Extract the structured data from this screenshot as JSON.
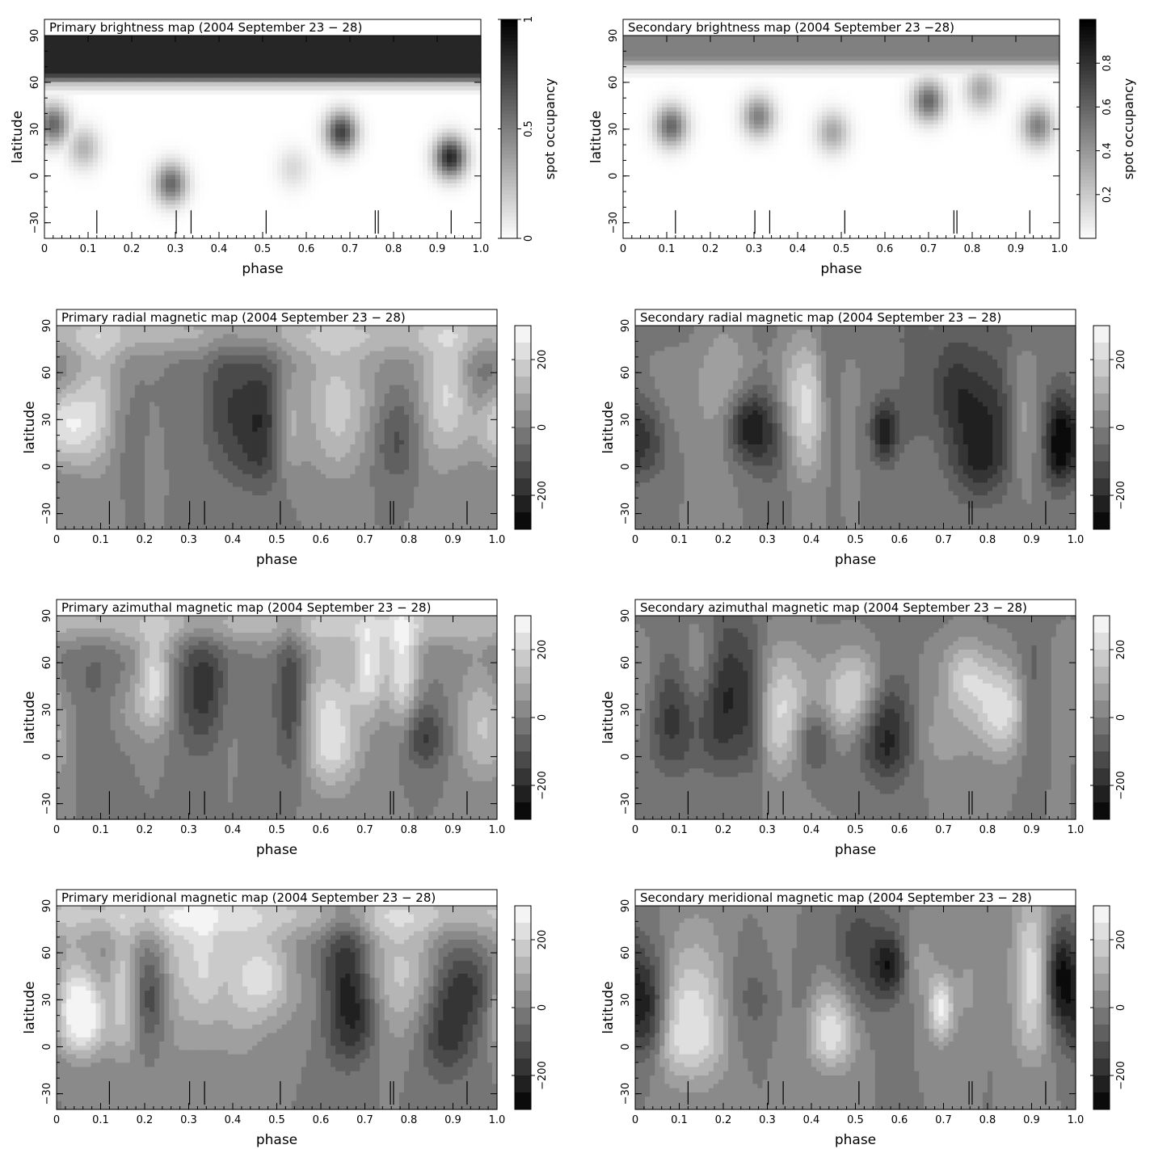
{
  "chart_data": [
    {
      "type": "heatmap",
      "title": "Primary brightness map (2004 September 23 − 28)",
      "xlabel": "phase",
      "ylabel": "latitude",
      "xlim": [
        0,
        1
      ],
      "ylim": [
        -40,
        90
      ],
      "xticks": [
        "0",
        "0.1",
        "0.2",
        "0.3",
        "0.4",
        "0.5",
        "0.6",
        "0.7",
        "0.8",
        "0.9",
        "1.0"
      ],
      "yticks": [
        "−30",
        "0",
        "30",
        "60",
        "90"
      ],
      "colorbar": {
        "label": "spot occupancy",
        "range": [
          0,
          1
        ],
        "ticks": [
          "0",
          "0.5",
          "1"
        ],
        "colormap": "gray-reversed"
      },
      "observation_phases": [
        0.12,
        0.302,
        0.336,
        0.508,
        0.758,
        0.765,
        0.932
      ],
      "features": [
        {
          "kind": "cap",
          "lat_min": 60,
          "lat_max": 90,
          "value": 0.85
        },
        {
          "kind": "spot",
          "phase": 0.02,
          "lat": 33,
          "value": 0.6
        },
        {
          "kind": "spot",
          "phase": 0.09,
          "lat": 18,
          "value": 0.3
        },
        {
          "kind": "spot",
          "phase": 0.29,
          "lat": -5,
          "value": 0.6
        },
        {
          "kind": "spot",
          "phase": 0.57,
          "lat": 5,
          "value": 0.15
        },
        {
          "kind": "spot",
          "phase": 0.68,
          "lat": 28,
          "value": 0.75
        },
        {
          "kind": "spot",
          "phase": 0.93,
          "lat": 12,
          "value": 0.85
        }
      ]
    },
    {
      "type": "heatmap",
      "title": "Secondary brightness map (2004 September 23 −28)",
      "xlabel": "phase",
      "ylabel": "latitude",
      "xlim": [
        0,
        1
      ],
      "ylim": [
        -40,
        90
      ],
      "xticks": [
        "0",
        "0.1",
        "0.2",
        "0.3",
        "0.4",
        "0.5",
        "0.6",
        "0.7",
        "0.8",
        "0.9",
        "1.0"
      ],
      "yticks": [
        "−30",
        "0",
        "30",
        "60",
        "90"
      ],
      "colorbar": {
        "label": "spot occupancy",
        "range": [
          0,
          1
        ],
        "ticks": [
          "0.2",
          "0.4",
          "0.6",
          "0.8"
        ],
        "colormap": "gray-reversed"
      },
      "observation_phases": [
        0.12,
        0.302,
        0.336,
        0.508,
        0.758,
        0.765,
        0.932
      ],
      "features": [
        {
          "kind": "cap",
          "lat_min": 70,
          "lat_max": 90,
          "value": 0.5
        },
        {
          "kind": "spot",
          "phase": 0.11,
          "lat": 32,
          "value": 0.6
        },
        {
          "kind": "spot",
          "phase": 0.31,
          "lat": 38,
          "value": 0.5
        },
        {
          "kind": "spot",
          "phase": 0.48,
          "lat": 28,
          "value": 0.35
        },
        {
          "kind": "spot",
          "phase": 0.7,
          "lat": 48,
          "value": 0.6
        },
        {
          "kind": "spot",
          "phase": 0.82,
          "lat": 55,
          "value": 0.35
        },
        {
          "kind": "spot",
          "phase": 0.95,
          "lat": 32,
          "value": 0.5
        }
      ]
    },
    {
      "type": "heatmap",
      "title": "Primary radial magnetic map (2004 September 23 − 28)",
      "xlabel": "phase",
      "ylabel": "latitude",
      "xlim": [
        0,
        1
      ],
      "ylim": [
        -40,
        90
      ],
      "xticks": [
        "0",
        "0.1",
        "0.2",
        "0.3",
        "0.4",
        "0.5",
        "0.6",
        "0.7",
        "0.8",
        "0.9",
        "1.0"
      ],
      "yticks": [
        "−30",
        "0",
        "30",
        "60",
        "90"
      ],
      "colorbar": {
        "label": "",
        "range": [
          -300,
          300
        ],
        "ticks": [
          "−200",
          "0",
          "200"
        ],
        "colormap": "gray",
        "levels": 12
      },
      "observation_phases": [
        0.12,
        0.302,
        0.336,
        0.508,
        0.758,
        0.765,
        0.932
      ],
      "seed": 1
    },
    {
      "type": "heatmap",
      "title": "Secondary radial magnetic map (2004 September 23 − 28)",
      "xlabel": "phase",
      "ylabel": "latitude",
      "xlim": [
        0,
        1
      ],
      "ylim": [
        -40,
        90
      ],
      "xticks": [
        "0",
        "0.1",
        "0.2",
        "0.3",
        "0.4",
        "0.5",
        "0.6",
        "0.7",
        "0.8",
        "0.9",
        "1.0"
      ],
      "yticks": [
        "−30",
        "0",
        "30",
        "60",
        "90"
      ],
      "colorbar": {
        "label": "",
        "range": [
          -300,
          300
        ],
        "ticks": [
          "−200",
          "0",
          "200"
        ],
        "colormap": "gray",
        "levels": 12
      },
      "observation_phases": [
        0.12,
        0.302,
        0.336,
        0.508,
        0.758,
        0.765,
        0.932
      ],
      "seed": 2
    },
    {
      "type": "heatmap",
      "title": "Primary azimuthal magnetic map (2004 September 23 − 28)",
      "xlabel": "phase",
      "ylabel": "latitude",
      "xlim": [
        0,
        1
      ],
      "ylim": [
        -40,
        90
      ],
      "xticks": [
        "0",
        "0.1",
        "0.2",
        "0.3",
        "0.4",
        "0.5",
        "0.6",
        "0.7",
        "0.8",
        "0.9",
        "1.0"
      ],
      "yticks": [
        "−30",
        "0",
        "30",
        "60",
        "90"
      ],
      "colorbar": {
        "label": "",
        "range": [
          -300,
          300
        ],
        "ticks": [
          "−200",
          "0",
          "200"
        ],
        "colormap": "gray",
        "levels": 12
      },
      "observation_phases": [
        0.12,
        0.302,
        0.336,
        0.508,
        0.758,
        0.765,
        0.932
      ],
      "seed": 3
    },
    {
      "type": "heatmap",
      "title": "Secondary azimuthal magnetic map (2004 September 23 − 28)",
      "xlabel": "phase",
      "ylabel": "latitude",
      "xlim": [
        0,
        1
      ],
      "ylim": [
        -40,
        90
      ],
      "xticks": [
        "0",
        "0.1",
        "0.2",
        "0.3",
        "0.4",
        "0.5",
        "0.6",
        "0.7",
        "0.8",
        "0.9",
        "1.0"
      ],
      "yticks": [
        "−30",
        "0",
        "30",
        "60",
        "90"
      ],
      "colorbar": {
        "label": "",
        "range": [
          -300,
          300
        ],
        "ticks": [
          "−200",
          "0",
          "200"
        ],
        "colormap": "gray",
        "levels": 12
      },
      "observation_phases": [
        0.12,
        0.302,
        0.336,
        0.508,
        0.758,
        0.765,
        0.932
      ],
      "seed": 4
    },
    {
      "type": "heatmap",
      "title": "Primary meridional magnetic map (2004 September 23 − 28)",
      "xlabel": "phase",
      "ylabel": "latitude",
      "xlim": [
        0,
        1
      ],
      "ylim": [
        -40,
        90
      ],
      "xticks": [
        "0",
        "0.1",
        "0.2",
        "0.3",
        "0.4",
        "0.5",
        "0.6",
        "0.7",
        "0.8",
        "0.9",
        "1.0"
      ],
      "yticks": [
        "−30",
        "0",
        "30",
        "60",
        "90"
      ],
      "colorbar": {
        "label": "",
        "range": [
          -300,
          300
        ],
        "ticks": [
          "−200",
          "0",
          "200"
        ],
        "colormap": "gray",
        "levels": 12
      },
      "observation_phases": [
        0.12,
        0.302,
        0.336,
        0.508,
        0.758,
        0.765,
        0.932
      ],
      "seed": 5
    },
    {
      "type": "heatmap",
      "title": "Secondary meridional magnetic map (2004 September 23 − 28)",
      "xlabel": "phase",
      "ylabel": "latitude",
      "xlim": [
        0,
        1
      ],
      "ylim": [
        -40,
        90
      ],
      "xticks": [
        "0",
        "0.1",
        "0.2",
        "0.3",
        "0.4",
        "0.5",
        "0.6",
        "0.7",
        "0.8",
        "0.9",
        "1.0"
      ],
      "yticks": [
        "−30",
        "0",
        "30",
        "60",
        "90"
      ],
      "colorbar": {
        "label": "",
        "range": [
          -300,
          300
        ],
        "ticks": [
          "−200",
          "0",
          "200"
        ],
        "colormap": "gray",
        "levels": 12
      },
      "observation_phases": [
        0.12,
        0.302,
        0.336,
        0.508,
        0.758,
        0.765,
        0.932
      ],
      "seed": 6
    }
  ]
}
